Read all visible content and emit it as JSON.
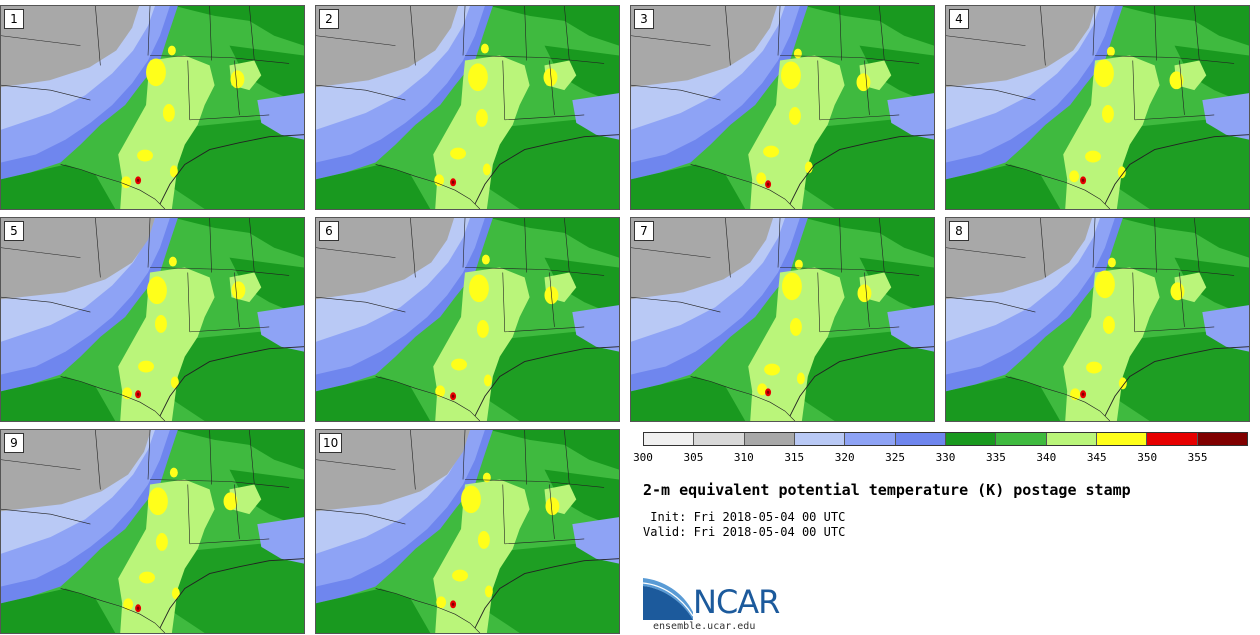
{
  "panels": [
    {
      "label": "1"
    },
    {
      "label": "2"
    },
    {
      "label": "3"
    },
    {
      "label": "4"
    },
    {
      "label": "5"
    },
    {
      "label": "6"
    },
    {
      "label": "7"
    },
    {
      "label": "8"
    },
    {
      "label": "9"
    },
    {
      "label": "10"
    }
  ],
  "legend": {
    "colors": [
      "#f0f0f0",
      "#d8d8d8",
      "#a8a8a8",
      "#b9c9f5",
      "#8ea3f5",
      "#6f86ee",
      "#19991f",
      "#3fba3f",
      "#baf57a",
      "#ffff1a",
      "#e60000",
      "#800000"
    ],
    "ticks": [
      "300",
      "305",
      "310",
      "315",
      "320",
      "325",
      "330",
      "335",
      "340",
      "345",
      "350",
      "355"
    ]
  },
  "title": "2-m equivalent potential temperature (K) postage stamp",
  "init_line": " Init: Fri 2018-05-04 00 UTC",
  "valid_line": "Valid: Fri 2018-05-04 00 UTC",
  "logo": {
    "text": "NCAR",
    "url": "ensemble.ucar.edu",
    "colors": {
      "blue": "#1c5a9c",
      "light": "#5a9bd5"
    }
  },
  "map_colors": {
    "gray": "#a8a8a8",
    "light_blue": "#b9c9f5",
    "blue": "#8ea3f5",
    "mid_blue": "#6f86ee",
    "dark_green": "#19991f",
    "green": "#3fba3f",
    "light_green": "#baf57a",
    "yellow": "#ffff1a",
    "red": "#e60000",
    "dark_red": "#800000",
    "border": "#222222"
  }
}
